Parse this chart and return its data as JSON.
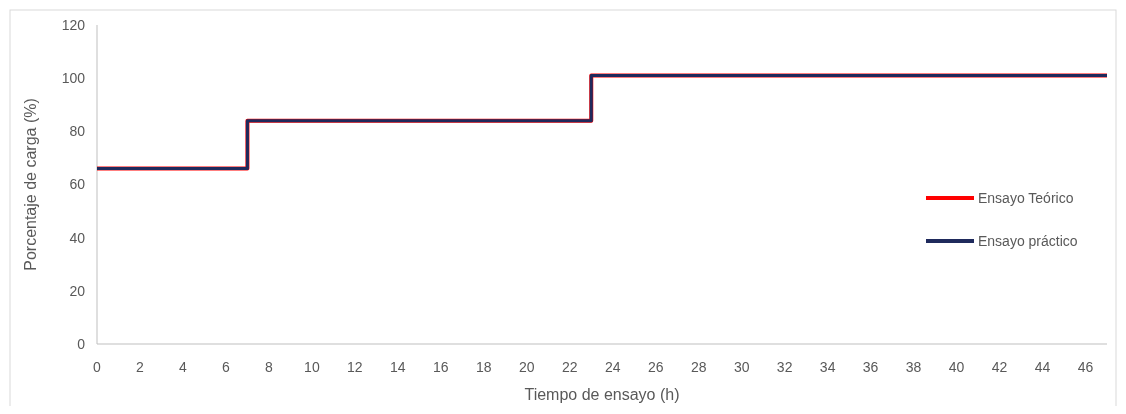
{
  "chart_data": {
    "type": "step",
    "xlabel": "Tiempo de ensayo (h)",
    "ylabel": "Porcentaje de carga (%)",
    "x": [
      0,
      7,
      23,
      47
    ],
    "series": [
      {
        "name": "Ensayo Teórico",
        "color": "#ff0000",
        "values": [
          66,
          84,
          101,
          101
        ]
      },
      {
        "name": "Ensayo práctico",
        "color": "#1f2a5c",
        "values": [
          66,
          84,
          101,
          101
        ]
      }
    ],
    "xlim": [
      0,
      47
    ],
    "xticks": [
      0,
      2,
      4,
      6,
      8,
      10,
      12,
      14,
      16,
      18,
      20,
      22,
      24,
      26,
      28,
      30,
      32,
      34,
      36,
      38,
      40,
      42,
      44,
      46
    ],
    "ylim": [
      0,
      120
    ],
    "yticks": [
      0,
      20,
      40,
      60,
      80,
      100,
      120
    ],
    "grid": false,
    "legend": "right",
    "line_style": "solid"
  }
}
